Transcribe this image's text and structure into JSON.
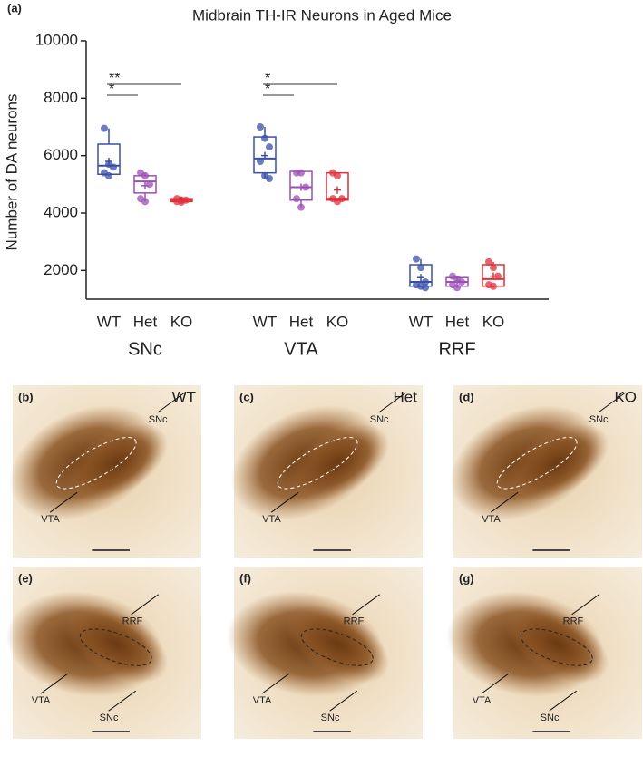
{
  "figure_label": "(a)",
  "chart_data": {
    "type": "box",
    "title": "Midbrain TH-IR Neurons in Aged Mice",
    "ylabel": "Number of DA neurons",
    "groups": [
      "SNc",
      "VTA",
      "RRF"
    ],
    "ylim": [
      1000,
      10000
    ],
    "yticks": [
      2000,
      4000,
      6000,
      8000,
      10000
    ],
    "significance": [
      [
        "**",
        "*"
      ],
      [
        "*",
        "*"
      ]
    ],
    "series": [
      {
        "name": "WT",
        "color": "#3b4fa8",
        "boxes": [
          {
            "whislo": 5300,
            "q1": 5350,
            "med": 5650,
            "q3": 6400,
            "whishi": 6950,
            "mean": 5800,
            "points": [
              6950,
              5700,
              5600,
              5400,
              5300
            ]
          },
          {
            "whislo": 5200,
            "q1": 5400,
            "med": 5900,
            "q3": 6650,
            "whishi": 7000,
            "mean": 6000,
            "points": [
              7000,
              6600,
              6300,
              5800,
              5300,
              5200
            ]
          },
          {
            "whislo": 1400,
            "q1": 1450,
            "med": 1600,
            "q3": 2200,
            "whishi": 2400,
            "mean": 1750,
            "points": [
              2400,
              2100,
              1600,
              1500,
              1450,
              1400
            ]
          }
        ]
      },
      {
        "name": "Het",
        "color": "#9b4fb5",
        "boxes": [
          {
            "whislo": 4400,
            "q1": 4700,
            "med": 5100,
            "q3": 5300,
            "whishi": 5400,
            "mean": 4950,
            "points": [
              5400,
              5300,
              5000,
              4500,
              4400
            ]
          },
          {
            "whislo": 4200,
            "q1": 4450,
            "med": 4900,
            "q3": 5450,
            "whishi": 5450,
            "mean": 4900,
            "points": [
              5400,
              5400,
              4900,
              4500,
              4200
            ]
          },
          {
            "whislo": 1400,
            "q1": 1450,
            "med": 1600,
            "q3": 1750,
            "whishi": 1800,
            "mean": 1600,
            "points": [
              1800,
              1700,
              1600,
              1500,
              1400
            ]
          }
        ]
      },
      {
        "name": "KO",
        "color": "#e0303c",
        "boxes": [
          {
            "whislo": 4380,
            "q1": 4400,
            "med": 4450,
            "q3": 4500,
            "whishi": 4550,
            "mean": 4450,
            "points": [
              4500,
              4450,
              4450,
              4400,
              4380
            ]
          },
          {
            "whislo": 4400,
            "q1": 4450,
            "med": 4500,
            "q3": 5400,
            "whishi": 5400,
            "mean": 4800,
            "points": [
              5400,
              5300,
              4500,
              4500,
              4400
            ]
          },
          {
            "whislo": 1400,
            "q1": 1450,
            "med": 1700,
            "q3": 2200,
            "whishi": 2300,
            "mean": 1800,
            "points": [
              2300,
              2100,
              1800,
              1500,
              1450
            ]
          }
        ]
      }
    ]
  },
  "panels": [
    {
      "label": "(b)",
      "genotype": "WT",
      "regions": [
        "SNc",
        "VTA"
      ]
    },
    {
      "label": "(c)",
      "genotype": "Het",
      "regions": [
        "SNc",
        "VTA"
      ]
    },
    {
      "label": "(d)",
      "genotype": "KO",
      "regions": [
        "SNc",
        "VTA"
      ]
    },
    {
      "label": "(e)",
      "regions": [
        "RRF",
        "VTA",
        "SNc"
      ]
    },
    {
      "label": "(f)",
      "regions": [
        "RRF",
        "VTA",
        "SNc"
      ]
    },
    {
      "label": "(g)",
      "regions": [
        "RRF",
        "VTA",
        "SNc"
      ]
    }
  ]
}
